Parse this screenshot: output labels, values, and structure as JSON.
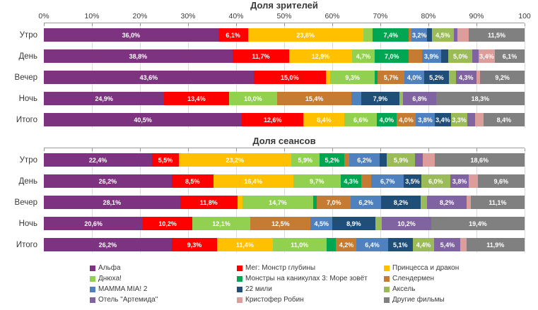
{
  "chart_data": [
    {
      "type": "bar",
      "variant": "horizontal-stacked",
      "title": "Доля зрителей",
      "categories": [
        "Утро",
        "День",
        "Вечер",
        "Ночь",
        "Итого"
      ],
      "xlim": [
        0,
        100
      ],
      "grid": true,
      "x_ticks": [
        "0%",
        "10%",
        "20%",
        "30%",
        "40%",
        "50%",
        "60%",
        "70%",
        "80%",
        "90%",
        "100"
      ],
      "show_tick_labels": true,
      "series": [
        {
          "name": "Альфа",
          "color": "#7D3380",
          "values": [
            36.0,
            38.8,
            43.6,
            24.9,
            40.5
          ],
          "labels": [
            "36,0%",
            "38,8%",
            "43,6%",
            "24,9%",
            "40,5%"
          ]
        },
        {
          "name": "Мег: Монстр глубины",
          "color": "#FE0000",
          "values": [
            6.1,
            11.7,
            15.0,
            13.4,
            12.6
          ],
          "labels": [
            "6,1%",
            "11,7%",
            "15,0%",
            "13,4%",
            "12,6%"
          ]
        },
        {
          "name": "Принцесса и дракон",
          "color": "#FFC000",
          "values": [
            23.8,
            12.9,
            0.9,
            0,
            8.4
          ],
          "labels": [
            "23,8%",
            "12,9%",
            "",
            "",
            "8,4%"
          ]
        },
        {
          "name": "Днюха!",
          "color": "#92D050",
          "values": [
            2.0,
            4.7,
            9.3,
            10.0,
            6.6
          ],
          "labels": [
            "",
            "4,7%",
            "9,3%",
            "10,0%",
            "6,6%"
          ]
        },
        {
          "name": "Монстры на каникулах 3: Море зовёт",
          "color": "#00A651",
          "values": [
            7.4,
            7.0,
            0.5,
            0,
            4.0
          ],
          "labels": [
            "7,4%",
            "7,0%",
            "",
            "",
            "4,0%"
          ]
        },
        {
          "name": "Слендермен",
          "color": "#C67B33",
          "values": [
            0.6,
            2.7,
            5.7,
            15.4,
            4.0
          ],
          "labels": [
            "",
            "",
            "5,7%",
            "15,4%",
            "4,0%"
          ]
        },
        {
          "name": "MAMMA MIA! 2",
          "color": "#4E81BD",
          "values": [
            3.2,
            3.9,
            4.0,
            2.0,
            3.8
          ],
          "labels": [
            "3,2%",
            "3,9%",
            "4,0%",
            "",
            "3,8%"
          ]
        },
        {
          "name": "22 мили",
          "color": "#1F4E79",
          "values": [
            1.0,
            1.5,
            5.2,
            7.9,
            3.4
          ],
          "labels": [
            "",
            "",
            "5,2%",
            "7,9%",
            "3,4%"
          ]
        },
        {
          "name": "Аксель",
          "color": "#9BBB59",
          "values": [
            4.5,
            5.0,
            1.4,
            0.8,
            3.3
          ],
          "labels": [
            "4,5%",
            "5,0%",
            "",
            "",
            "3,3%"
          ]
        },
        {
          "name": "Отель \"Артемида\"",
          "color": "#8064A2",
          "values": [
            0.7,
            1.2,
            4.3,
            6.8,
            1.6
          ],
          "labels": [
            "",
            "",
            "4,3%",
            "6,8%",
            ""
          ]
        },
        {
          "name": "Кристофер Робин",
          "color": "#DD9D9A",
          "values": [
            2.4,
            3.4,
            0.8,
            0,
            1.7
          ],
          "labels": [
            "",
            "3,4%",
            "",
            "",
            ""
          ]
        },
        {
          "name": "Другие фильмы",
          "color": "#808080",
          "values": [
            11.5,
            6.1,
            9.2,
            18.3,
            8.4
          ],
          "labels": [
            "11,5%",
            "6,1%",
            "9,2%",
            "18,3%",
            "8,4%"
          ]
        }
      ]
    },
    {
      "type": "bar",
      "variant": "horizontal-stacked",
      "title": "Доля сеансов",
      "categories": [
        "Утро",
        "День",
        "Вечер",
        "Ночь",
        "Итого"
      ],
      "xlim": [
        0,
        100
      ],
      "grid": true,
      "x_ticks": [],
      "show_tick_labels": false,
      "series": [
        {
          "name": "Альфа",
          "color": "#7D3380",
          "values": [
            22.4,
            26.2,
            28.1,
            20.6,
            26.2
          ],
          "labels": [
            "22,4%",
            "26,2%",
            "28,1%",
            "20,6%",
            "26,2%"
          ]
        },
        {
          "name": "Мег: Монстр глубины",
          "color": "#FE0000",
          "values": [
            5.5,
            8.5,
            11.8,
            10.2,
            9.3
          ],
          "labels": [
            "5,5%",
            "8,5%",
            "11,8%",
            "10,2%",
            "9,3%"
          ]
        },
        {
          "name": "Принцесса и дракон",
          "color": "#FFC000",
          "values": [
            23.2,
            16.4,
            1.0,
            0,
            11.4
          ],
          "labels": [
            "23,2%",
            "16,4%",
            "",
            "",
            "11,4%"
          ]
        },
        {
          "name": "Днюха!",
          "color": "#92D050",
          "values": [
            5.9,
            9.7,
            14.7,
            12.1,
            11.0
          ],
          "labels": [
            "5,9%",
            "9,7%",
            "14,7%",
            "12,1%",
            "11,0%"
          ]
        },
        {
          "name": "Монстры на каникулах 3: Море зовёт",
          "color": "#00A651",
          "values": [
            5.2,
            4.3,
            0.7,
            0,
            2.0
          ],
          "labels": [
            "5,2%",
            "4,3%",
            "",
            "",
            ""
          ]
        },
        {
          "name": "Слендермен",
          "color": "#C67B33",
          "values": [
            1.0,
            2.0,
            7.0,
            12.5,
            4.2
          ],
          "labels": [
            "",
            "",
            "7,0%",
            "12,5%",
            "4,2%"
          ]
        },
        {
          "name": "MAMMA MIA! 2",
          "color": "#4E81BD",
          "values": [
            6.2,
            6.7,
            6.2,
            4.5,
            6.4
          ],
          "labels": [
            "6,2%",
            "6,7%",
            "6,2%",
            "4,5%",
            "6,4%"
          ]
        },
        {
          "name": "22 мили",
          "color": "#1F4E79",
          "values": [
            1.5,
            3.5,
            8.2,
            8.9,
            5.1
          ],
          "labels": [
            "",
            "3,5%",
            "8,2%",
            "8,9%",
            "5,1%"
          ]
        },
        {
          "name": "Аксель",
          "color": "#9BBB59",
          "values": [
            5.9,
            6.0,
            1.3,
            1.4,
            4.4
          ],
          "labels": [
            "5,9%",
            "6,0%",
            "",
            "",
            "4,4%"
          ]
        },
        {
          "name": "Отель \"Артемида\"",
          "color": "#8064A2",
          "values": [
            1.5,
            3.8,
            8.2,
            10.2,
            5.4
          ],
          "labels": [
            "",
            "3,8%",
            "8,2%",
            "10,2%",
            "5,4%"
          ]
        },
        {
          "name": "Кристофер Робин",
          "color": "#DD9D9A",
          "values": [
            2.5,
            1.8,
            0.8,
            0,
            1.2
          ],
          "labels": [
            "",
            "",
            "",
            "",
            ""
          ]
        },
        {
          "name": "Другие фильмы",
          "color": "#808080",
          "values": [
            18.6,
            9.6,
            11.1,
            19.4,
            11.9
          ],
          "labels": [
            "18,6%",
            "9,6%",
            "11,1%",
            "19,4%",
            "11,9%"
          ]
        }
      ]
    }
  ],
  "legend": {
    "position": "bottom",
    "columns": 3,
    "items": [
      {
        "label": "Альфа",
        "color": "#7D3380"
      },
      {
        "label": "Мег: Монстр глубины",
        "color": "#FE0000"
      },
      {
        "label": "Принцесса и дракон",
        "color": "#FFC000"
      },
      {
        "label": "Днюха!",
        "color": "#92D050"
      },
      {
        "label": "Монстры на каникулах 3: Море зовёт",
        "color": "#00A651"
      },
      {
        "label": "Слендермен",
        "color": "#C67B33"
      },
      {
        "label": "MAMMA MIA! 2",
        "color": "#4E81BD"
      },
      {
        "label": "22 мили",
        "color": "#1F4E79"
      },
      {
        "label": "Аксель",
        "color": "#9BBB59"
      },
      {
        "label": "Отель \"Артемида\"",
        "color": "#8064A2"
      },
      {
        "label": "Кристофер Робин",
        "color": "#DD9D9A"
      },
      {
        "label": "Другие фильмы",
        "color": "#808080"
      }
    ]
  }
}
